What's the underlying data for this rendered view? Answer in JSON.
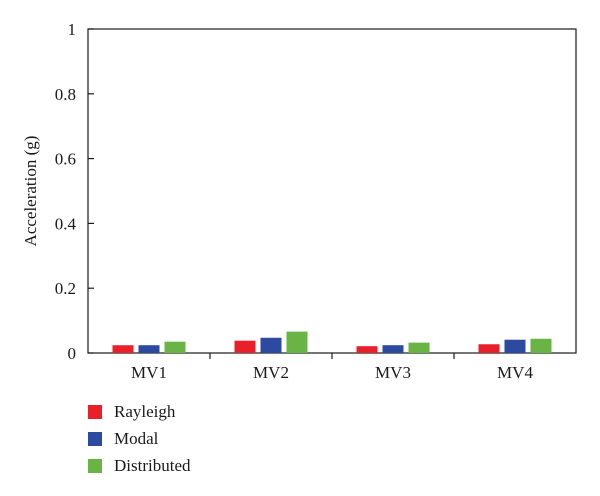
{
  "chart_data": {
    "type": "bar",
    "categories": [
      "MV1",
      "MV2",
      "MV3",
      "MV4"
    ],
    "series": [
      {
        "name": "Rayleigh",
        "color": "#e8202a",
        "values": [
          0.024,
          0.038,
          0.021,
          0.027
        ]
      },
      {
        "name": "Modal",
        "color": "#2b4aa0",
        "values": [
          0.024,
          0.047,
          0.024,
          0.041
        ]
      },
      {
        "name": "Distributed",
        "color": "#6ab446",
        "values": [
          0.035,
          0.066,
          0.032,
          0.044
        ]
      }
    ],
    "title": "",
    "xlabel": "",
    "ylabel": "Acceleration (g)",
    "ylim": [
      0,
      1
    ],
    "yticks": [
      "0",
      "0.2",
      "0.4",
      "0.6",
      "0.8",
      "1"
    ],
    "ytick_values": [
      0,
      0.2,
      0.4,
      0.6,
      0.8,
      1
    ],
    "grid": false,
    "legend_position": "bottom-left"
  }
}
